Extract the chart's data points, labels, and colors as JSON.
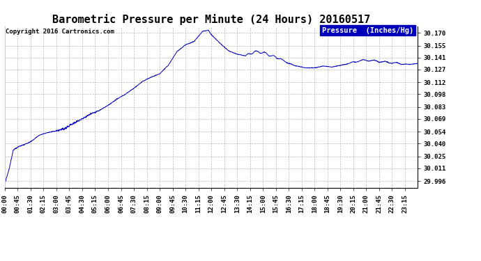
{
  "title": "Barometric Pressure per Minute (24 Hours) 20160517",
  "copyright": "Copyright 2016 Cartronics.com",
  "legend_label": "Pressure  (Inches/Hg)",
  "line_color": "#0000bb",
  "background_color": "#ffffff",
  "grid_color": "#aaaaaa",
  "yticks": [
    29.996,
    30.011,
    30.025,
    30.04,
    30.054,
    30.069,
    30.083,
    30.098,
    30.112,
    30.127,
    30.141,
    30.155,
    30.17
  ],
  "ylim": [
    29.988,
    30.178
  ],
  "xtick_labels": [
    "00:00",
    "00:45",
    "01:30",
    "02:15",
    "03:00",
    "03:45",
    "04:30",
    "05:15",
    "06:00",
    "06:45",
    "07:30",
    "08:15",
    "09:00",
    "09:45",
    "10:30",
    "11:15",
    "12:00",
    "12:45",
    "13:30",
    "14:15",
    "15:00",
    "15:45",
    "16:30",
    "17:15",
    "18:00",
    "18:45",
    "19:30",
    "20:15",
    "21:00",
    "21:45",
    "22:30",
    "23:15"
  ],
  "title_fontsize": 11,
  "copyright_fontsize": 6.5,
  "tick_fontsize": 6.5,
  "legend_fontsize": 7.5,
  "pressure_points_x": [
    0,
    15,
    30,
    45,
    60,
    90,
    120,
    150,
    180,
    210,
    240,
    270,
    300,
    330,
    360,
    390,
    420,
    450,
    480,
    510,
    540,
    570,
    600,
    630,
    660,
    690,
    710,
    720,
    735,
    750,
    780,
    810,
    840,
    870,
    900,
    930,
    960,
    990,
    1020,
    1050,
    1080,
    1110,
    1140,
    1170,
    1200,
    1230,
    1260,
    1290,
    1320,
    1350,
    1380,
    1410,
    1439
  ],
  "pressure_points_y": [
    29.993,
    30.01,
    30.033,
    30.036,
    30.038,
    30.042,
    30.05,
    30.053,
    30.055,
    30.058,
    30.064,
    30.069,
    30.075,
    30.079,
    30.085,
    30.092,
    30.098,
    30.105,
    30.113,
    30.118,
    30.122,
    30.132,
    30.148,
    30.156,
    30.16,
    30.172,
    30.173,
    30.168,
    30.163,
    30.158,
    30.149,
    30.145,
    30.143,
    30.148,
    30.147,
    30.143,
    30.14,
    30.134,
    30.131,
    30.129,
    30.129,
    30.131,
    30.13,
    30.132,
    30.134,
    30.137,
    30.138,
    30.137,
    30.136,
    30.135,
    30.134,
    30.133,
    30.134
  ]
}
